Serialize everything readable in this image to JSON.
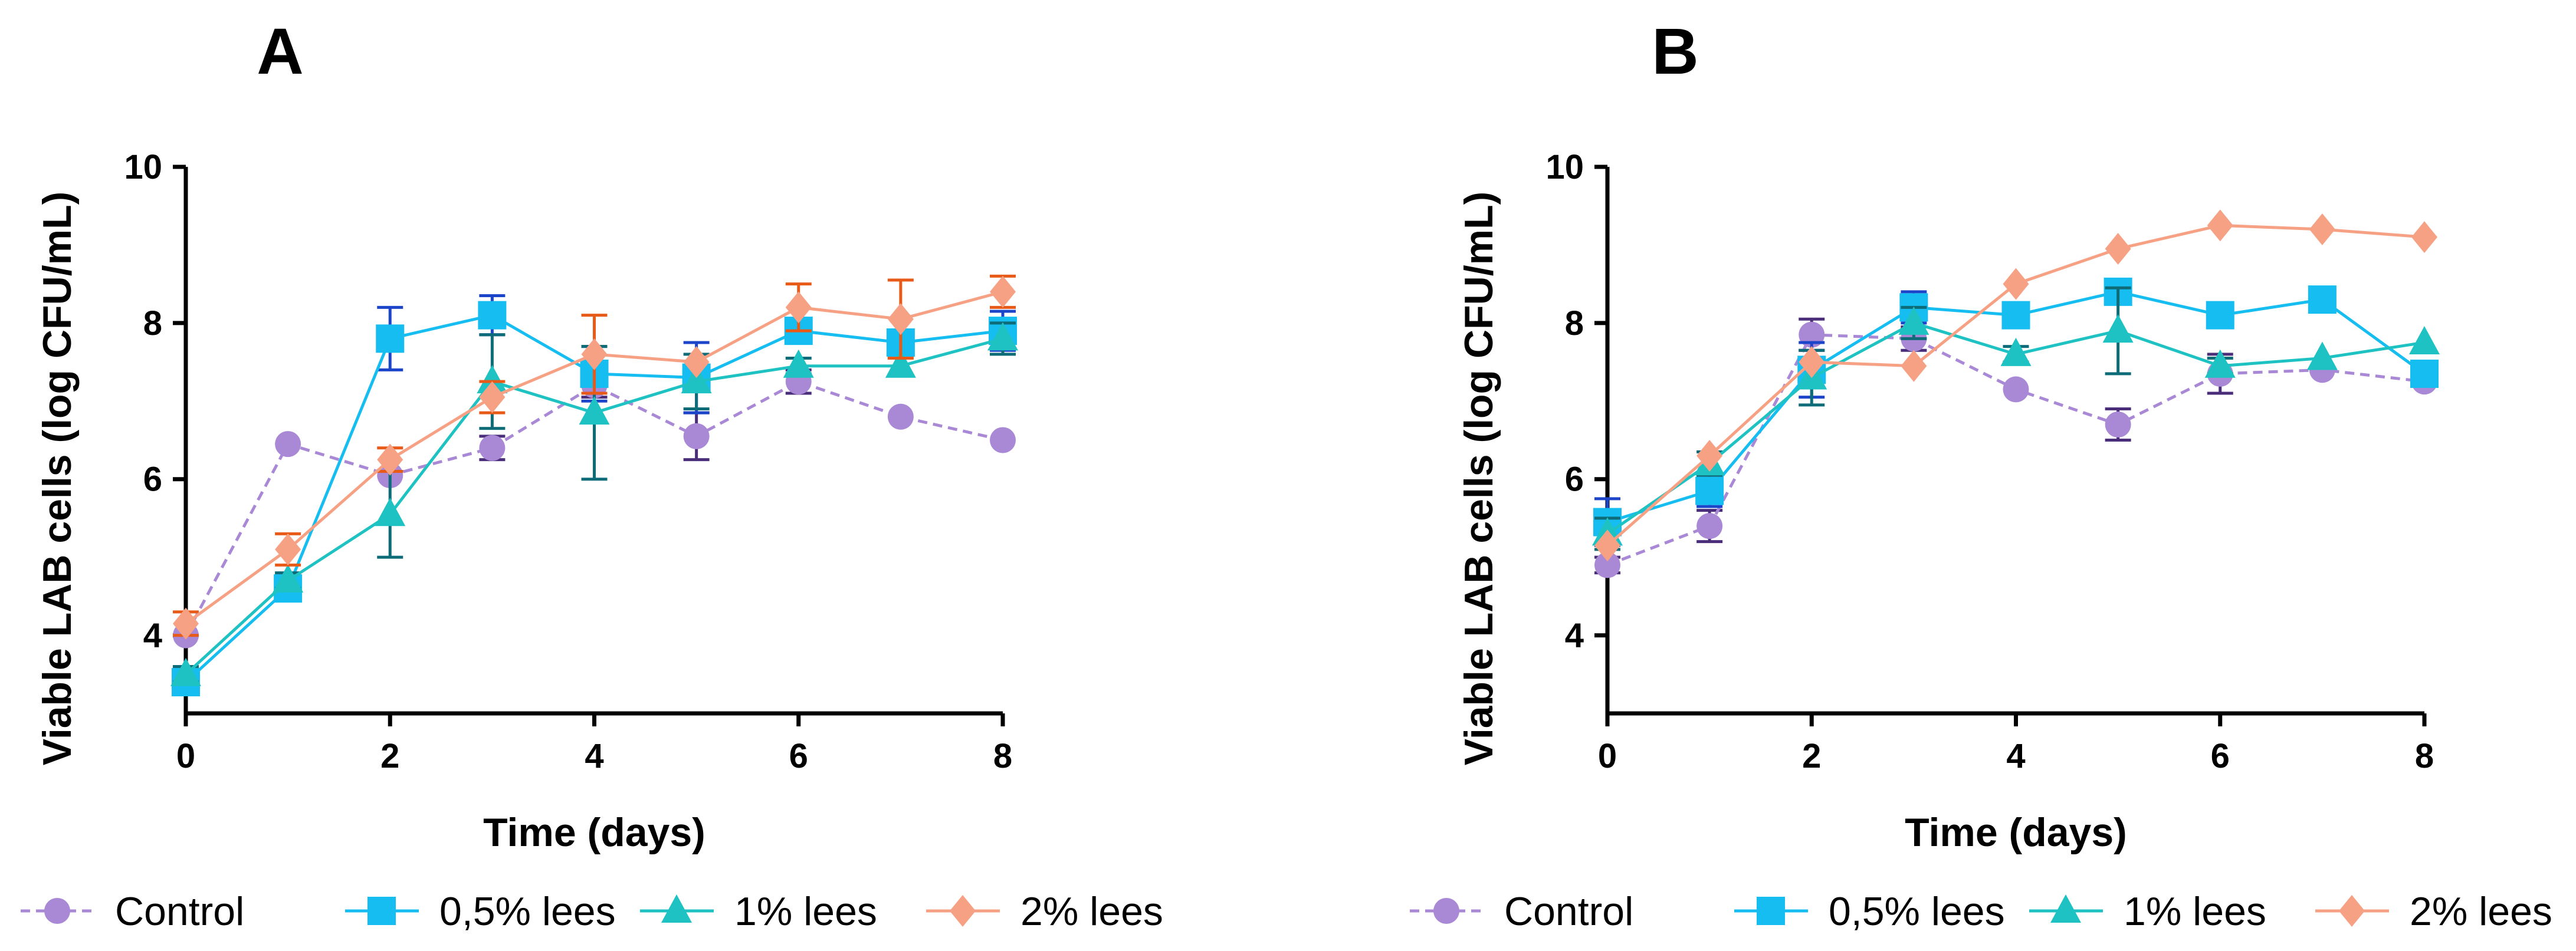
{
  "chart_data": [
    {
      "type": "line",
      "panel_label": "A",
      "xlabel": "Time (days)",
      "ylabel": "Viable LAB cells (log CFU/mL)",
      "xlim": [
        0,
        8
      ],
      "ylim": [
        3,
        10
      ],
      "xticks": [
        0,
        2,
        4,
        6,
        8
      ],
      "yticks": [
        4,
        6,
        8,
        10
      ],
      "x": [
        0,
        1,
        2,
        3,
        4,
        5,
        6,
        7,
        8
      ],
      "series": [
        {
          "name": "Control",
          "color": "#a989d6",
          "marker": "circle",
          "dash": true,
          "error_color": "#4a2e7a",
          "values": [
            4.0,
            6.45,
            6.05,
            6.4,
            7.2,
            6.55,
            7.25,
            6.8,
            6.5
          ],
          "errors": [
            0,
            0,
            0,
            0.15,
            0.15,
            0.3,
            0.15,
            0,
            0
          ]
        },
        {
          "name": "0,5% lees",
          "color": "#16bdf0",
          "marker": "square",
          "dash": false,
          "error_color": "#1d45c9",
          "values": [
            3.4,
            4.6,
            7.8,
            8.1,
            7.35,
            7.3,
            7.9,
            7.75,
            7.9
          ],
          "errors": [
            0.1,
            0.15,
            0.4,
            0.25,
            0.35,
            0.45,
            0.1,
            0.15,
            0.25
          ]
        },
        {
          "name": "1% lees",
          "color": "#1ec2c2",
          "marker": "triangle",
          "dash": false,
          "error_color": "#0e6b78",
          "values": [
            3.5,
            4.7,
            5.55,
            7.25,
            6.85,
            7.25,
            7.45,
            7.45,
            7.8
          ],
          "errors": [
            0.1,
            0.1,
            0.55,
            0.6,
            0.85,
            0.35,
            0.1,
            0,
            0.2
          ]
        },
        {
          "name": "2% lees",
          "color": "#f7a184",
          "marker": "diamond",
          "dash": false,
          "error_color": "#e85a18",
          "values": [
            4.15,
            5.1,
            6.25,
            7.05,
            7.6,
            7.5,
            8.2,
            8.05,
            8.4
          ],
          "errors": [
            0.15,
            0.2,
            0.15,
            0.2,
            0.5,
            0,
            0.3,
            0.5,
            0.2
          ]
        }
      ]
    },
    {
      "type": "line",
      "panel_label": "B",
      "xlabel": "Time (days)",
      "ylabel": "Viable LAB cells (log CFU/mL)",
      "xlim": [
        0,
        8
      ],
      "ylim": [
        3,
        10
      ],
      "xticks": [
        0,
        2,
        4,
        6,
        8
      ],
      "yticks": [
        4,
        6,
        8,
        10
      ],
      "x": [
        0,
        1,
        2,
        3,
        4,
        5,
        6,
        7,
        8
      ],
      "series": [
        {
          "name": "Control",
          "color": "#a989d6",
          "marker": "circle",
          "dash": true,
          "error_color": "#4a2e7a",
          "values": [
            4.9,
            5.4,
            7.85,
            7.8,
            7.15,
            6.7,
            7.35,
            7.4,
            7.25
          ],
          "errors": [
            0.1,
            0.2,
            0.2,
            0.15,
            0,
            0.2,
            0.25,
            0,
            0
          ]
        },
        {
          "name": "0,5% lees",
          "color": "#16bdf0",
          "marker": "square",
          "dash": false,
          "error_color": "#1d45c9",
          "values": [
            5.45,
            5.85,
            7.4,
            8.2,
            8.1,
            8.4,
            8.1,
            8.3,
            7.35
          ],
          "errors": [
            0.3,
            0.2,
            0.35,
            0.2,
            0.15,
            0,
            0,
            0,
            0
          ]
        },
        {
          "name": "1% lees",
          "color": "#1ec2c2",
          "marker": "triangle",
          "dash": false,
          "error_color": "#0e6b78",
          "values": [
            5.3,
            6.2,
            7.3,
            8.0,
            7.6,
            7.9,
            7.45,
            7.55,
            7.75
          ],
          "errors": [
            0.2,
            0.15,
            0.35,
            0.2,
            0.1,
            0.55,
            0.1,
            0,
            0
          ]
        },
        {
          "name": "2% lees",
          "color": "#f7a184",
          "marker": "diamond",
          "dash": false,
          "error_color": "#e85a18",
          "values": [
            5.15,
            6.3,
            7.5,
            7.45,
            8.5,
            8.95,
            9.25,
            9.2,
            9.1
          ],
          "errors": [
            0,
            0,
            0,
            0,
            0,
            0,
            0,
            0,
            0
          ]
        }
      ]
    }
  ]
}
